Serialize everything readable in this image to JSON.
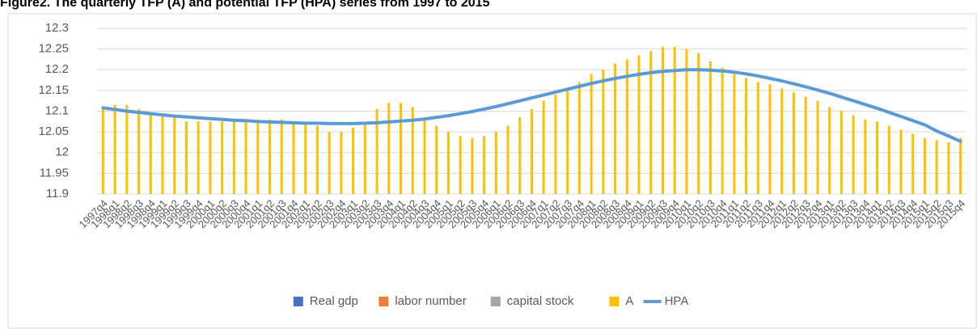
{
  "chart_data": {
    "type": "bar",
    "title": "Figure2. The quarterly TFP (A) and potential TFP (HPA) series from 1997 to 2015",
    "categories": [
      "1997q4",
      "1998q1",
      "1998q2",
      "1998q3",
      "1998q4",
      "1999q1",
      "1999q2",
      "1999q3",
      "1999q4",
      "2000q1",
      "2000q2",
      "2000q3",
      "2000q4",
      "2001q1",
      "2001q2",
      "2001q3",
      "2001q4",
      "2002q1",
      "2002q2",
      "2002q3",
      "2002q4",
      "2003q1",
      "2003q2",
      "2003q3",
      "2003q4",
      "2004q1",
      "2004q2",
      "2004q3",
      "2004q4",
      "2005q1",
      "2005q2",
      "2005q3",
      "2005q4",
      "2006q1",
      "2006q2",
      "2006q3",
      "2006q4",
      "2007q1",
      "2007q2",
      "2007q3",
      "2007q4",
      "2008q1",
      "2008q2",
      "2008q3",
      "2008q4",
      "2009q1",
      "2009q2",
      "2009q3",
      "2009q4",
      "2010q1",
      "2010q2",
      "2010q3",
      "2010q4",
      "2011q1",
      "2011q2",
      "2011q3",
      "2011q4",
      "2012q1",
      "2012q2",
      "2012q3",
      "2012q4",
      "2013q1",
      "2013q2",
      "2013q3",
      "2013q4",
      "2014q1",
      "2014q2",
      "2014q3",
      "2014q4",
      "2015q1",
      "2015q2",
      "2015q3",
      "2015q4"
    ],
    "series": [
      {
        "name": "Real gdp",
        "type": "bar",
        "color": "#4472c4",
        "values": [
          null,
          null,
          null,
          null,
          null,
          null,
          null,
          null,
          null,
          null,
          null,
          null,
          null,
          null,
          null,
          null,
          null,
          null,
          null,
          null,
          null,
          null,
          null,
          null,
          null,
          null,
          null,
          null,
          null,
          null,
          null,
          null,
          null,
          null,
          null,
          null,
          null,
          null,
          null,
          null,
          null,
          null,
          null,
          null,
          null,
          null,
          null,
          null,
          null,
          null,
          null,
          null,
          null,
          null,
          null,
          null,
          null,
          null,
          null,
          null,
          null,
          null,
          null,
          null,
          null,
          null,
          null,
          null,
          null,
          null,
          null,
          null,
          null
        ]
      },
      {
        "name": "labor number",
        "type": "bar",
        "color": "#ed7d31",
        "values": [
          null,
          null,
          null,
          null,
          null,
          null,
          null,
          null,
          null,
          null,
          null,
          null,
          null,
          null,
          null,
          null,
          null,
          null,
          null,
          null,
          null,
          null,
          null,
          null,
          null,
          null,
          null,
          null,
          null,
          null,
          null,
          null,
          null,
          null,
          null,
          null,
          null,
          null,
          null,
          null,
          null,
          null,
          null,
          null,
          null,
          null,
          null,
          null,
          null,
          null,
          null,
          null,
          null,
          null,
          null,
          null,
          null,
          null,
          null,
          null,
          null,
          null,
          null,
          null,
          null,
          null,
          null,
          null,
          null,
          null,
          null,
          null,
          null
        ]
      },
      {
        "name": "capital stock",
        "type": "bar",
        "color": "#a5a5a5",
        "values": [
          null,
          null,
          null,
          null,
          null,
          null,
          null,
          null,
          null,
          null,
          null,
          null,
          null,
          null,
          null,
          null,
          null,
          null,
          null,
          null,
          null,
          null,
          null,
          null,
          null,
          null,
          null,
          null,
          null,
          null,
          null,
          null,
          null,
          null,
          null,
          null,
          null,
          null,
          null,
          null,
          null,
          null,
          null,
          null,
          null,
          null,
          null,
          null,
          null,
          null,
          null,
          null,
          null,
          null,
          null,
          null,
          null,
          null,
          null,
          null,
          null,
          null,
          null,
          null,
          null,
          null,
          null,
          null,
          null,
          null,
          null,
          null,
          null
        ]
      },
      {
        "name": "A",
        "type": "bar",
        "color": "#ffc000",
        "values": [
          12.11,
          12.115,
          12.115,
          12.105,
          12.095,
          12.09,
          12.085,
          12.075,
          12.075,
          12.075,
          12.075,
          12.075,
          12.075,
          12.08,
          12.08,
          12.08,
          12.075,
          12.07,
          12.065,
          12.05,
          12.05,
          12.06,
          12.07,
          12.105,
          12.12,
          12.12,
          12.11,
          12.08,
          12.065,
          12.05,
          12.04,
          12.035,
          12.04,
          12.05,
          12.065,
          12.085,
          12.105,
          12.125,
          12.14,
          12.155,
          12.17,
          12.19,
          12.2,
          12.215,
          12.225,
          12.235,
          12.245,
          12.255,
          12.255,
          12.25,
          12.24,
          12.22,
          12.205,
          12.19,
          12.18,
          12.17,
          12.165,
          12.155,
          12.145,
          12.135,
          12.125,
          12.11,
          12.1,
          12.09,
          12.08,
          12.075,
          12.065,
          12.055,
          12.045,
          12.035,
          12.03,
          12.025,
          12.035
        ]
      },
      {
        "name": "HPA",
        "type": "line",
        "color": "#5b9bd5",
        "values": [
          12.108,
          12.104,
          12.1,
          12.097,
          12.094,
          12.091,
          12.088,
          12.086,
          12.084,
          12.082,
          12.08,
          12.078,
          12.077,
          12.075,
          12.074,
          12.073,
          12.072,
          12.071,
          12.071,
          12.07,
          12.07,
          12.07,
          12.071,
          12.072,
          12.074,
          12.076,
          12.078,
          12.081,
          12.085,
          12.089,
          12.094,
          12.099,
          12.105,
          12.111,
          12.118,
          12.125,
          12.132,
          12.139,
          12.146,
          12.153,
          12.16,
          12.167,
          12.173,
          12.179,
          12.184,
          12.189,
          12.193,
          12.196,
          12.198,
          12.2,
          12.2,
          12.199,
          12.197,
          12.194,
          12.19,
          12.185,
          12.179,
          12.173,
          12.166,
          12.159,
          12.151,
          12.143,
          12.134,
          12.125,
          12.116,
          12.107,
          12.097,
          12.087,
          12.077,
          12.067,
          12.052,
          12.04,
          12.027
        ]
      }
    ],
    "ylim": [
      11.9,
      12.3
    ],
    "yticks": [
      11.9,
      11.95,
      12,
      12.05,
      12.1,
      12.15,
      12.2,
      12.25,
      12.3
    ],
    "grid": true,
    "legend": "bottom"
  }
}
